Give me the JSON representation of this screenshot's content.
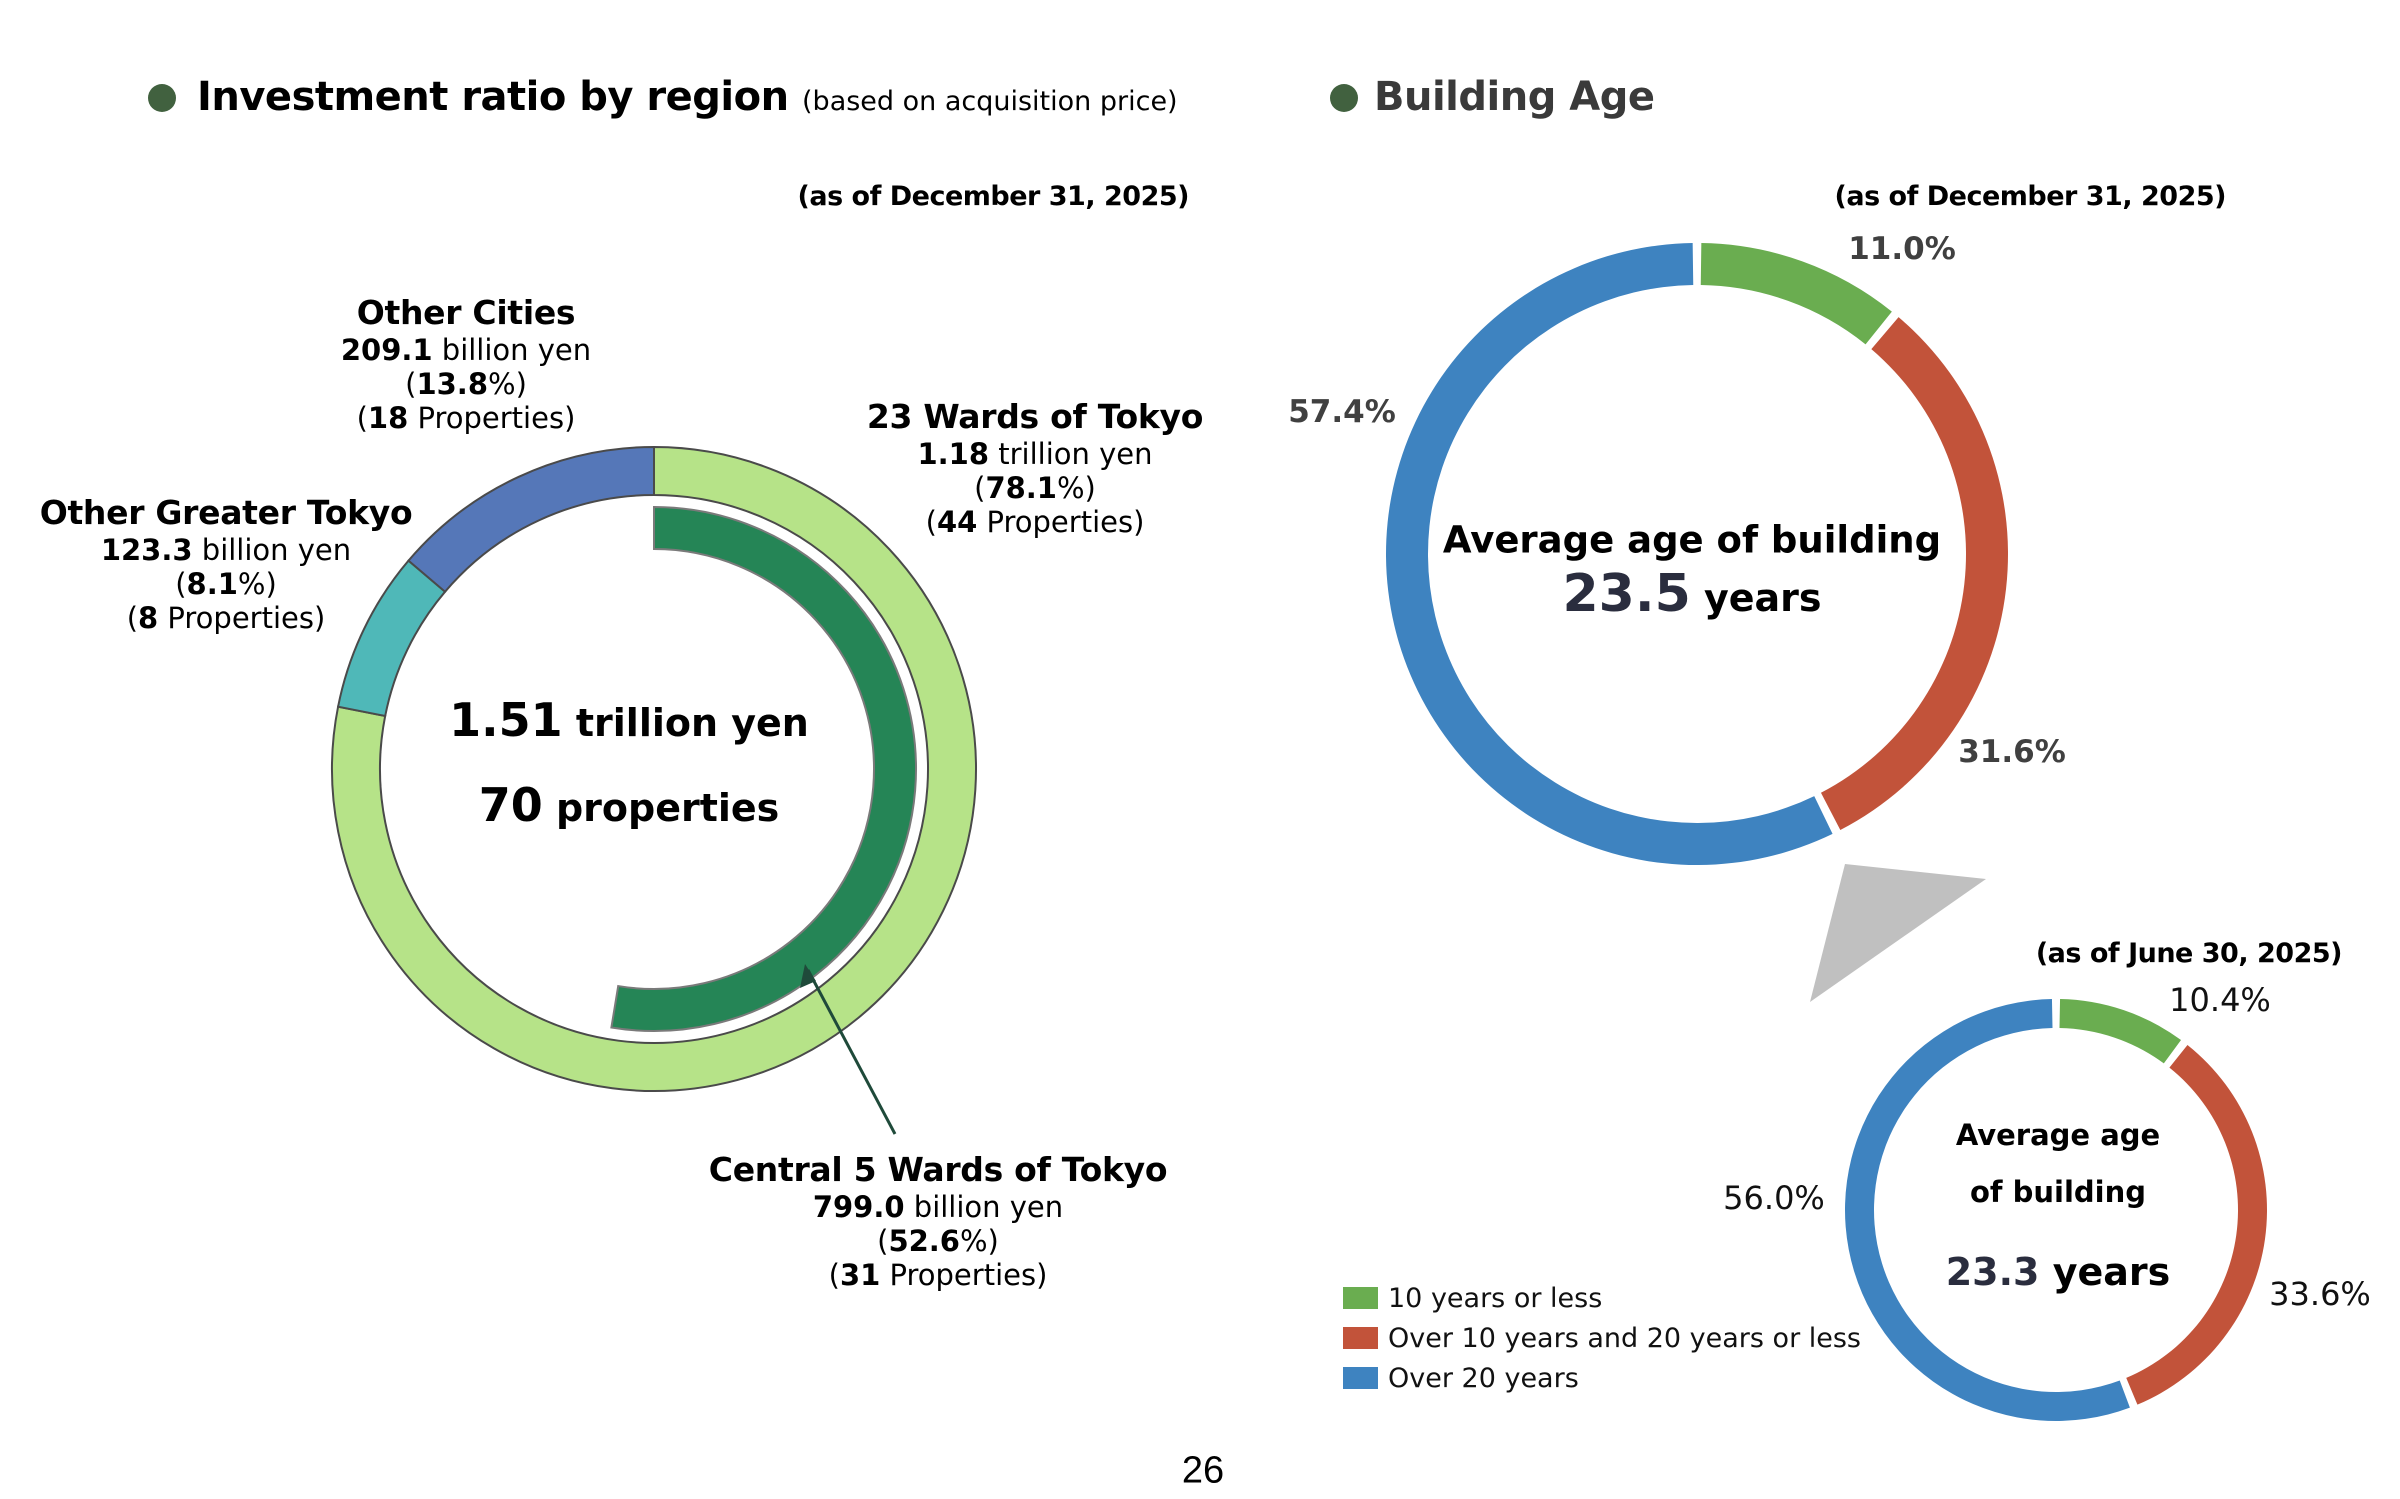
{
  "left_section": {
    "title": "Investment ratio by region",
    "subtitle": "(based on acquisition price)",
    "as_of": "(as of December 31, 2025)",
    "center_amount_value": "1.51",
    "center_amount_unit": " trillion yen",
    "center_count_value": "70",
    "center_count_unit": " properties"
  },
  "right_section": {
    "title": "Building Age",
    "main_as_of": "(as of December 31, 2025)",
    "main_center_label": "Average age of building",
    "main_center_value": "23.5",
    "main_center_unit": " years",
    "prev_as_of": "(as of June 30, 2025)",
    "prev_center_label_1": "Average age",
    "prev_center_label_2": "of building",
    "prev_center_value": "23.3",
    "prev_center_unit": " years"
  },
  "page_number": "26",
  "chart_data": [
    {
      "type": "pie",
      "title": "Investment ratio by region",
      "subtitle": "(based on acquisition price)",
      "variant": "nested-donut",
      "outer_ring": [
        {
          "name": "23 Wards of Tokyo",
          "amount_value": "1.18",
          "amount_unit": " trillion yen",
          "percent": 78.1,
          "percent_label": "78.1",
          "properties": "44",
          "color": "#b6e388"
        },
        {
          "name": "Other Greater Tokyo",
          "amount_value": "123.3",
          "amount_unit": " billion yen",
          "percent": 8.1,
          "percent_label": "8.1",
          "properties": "8",
          "color": "#4fb8b8"
        },
        {
          "name": "Other Cities",
          "amount_value": "209.1",
          "amount_unit": " billion yen",
          "percent": 13.8,
          "percent_label": "13.8",
          "properties": "18",
          "color": "#5577b8"
        }
      ],
      "inner_ring": [
        {
          "name": "Central 5 Wards of Tokyo",
          "amount_value": "799.0",
          "amount_unit": " billion yen",
          "percent": 52.6,
          "percent_label": "52.6",
          "properties": "31",
          "color": "#258556"
        }
      ],
      "total": "1.51 trillion yen",
      "total_properties": 70
    },
    {
      "type": "pie",
      "variant": "donut",
      "title": "Building Age",
      "as_of": "(as of December 31, 2025)",
      "categories": [
        "10 years or less",
        "Over 10 years and 20 years or less",
        "Over 20 years"
      ],
      "values": [
        11.0,
        31.6,
        57.4
      ],
      "labels": [
        "11.0%",
        "31.6%",
        "57.4%"
      ],
      "colors": [
        "#6aad50",
        "#c2533a",
        "#3e83c0"
      ]
    },
    {
      "type": "pie",
      "variant": "donut",
      "title": "Building Age",
      "as_of": "(as of June 30, 2025)",
      "categories": [
        "10 years or less",
        "Over 10 years and 20 years or less",
        "Over 20 years"
      ],
      "values": [
        10.4,
        33.6,
        56.0
      ],
      "labels": [
        "10.4%",
        "33.6%",
        "56.0%"
      ],
      "colors": [
        "#6aad50",
        "#c2533a",
        "#3e83c0"
      ]
    }
  ],
  "legend": [
    {
      "label": "10 years or less",
      "color": "#6aad50"
    },
    {
      "label": "Over 10 years and 20 years or less",
      "color": "#c2533a"
    },
    {
      "label": "Over 20 years",
      "color": "#3e83c0"
    }
  ],
  "colors": {
    "header_dot": "#41613f",
    "arrow": "#1f4a3a",
    "connector": "#c0c0c0"
  }
}
